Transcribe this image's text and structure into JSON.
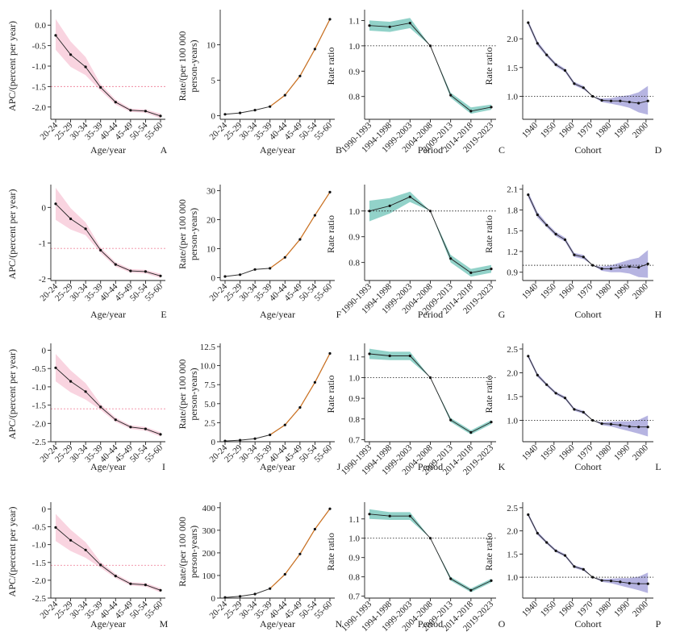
{
  "figure": {
    "panel_letters": [
      "A",
      "B",
      "C",
      "D",
      "E",
      "F",
      "G",
      "H",
      "I",
      "J",
      "K",
      "L",
      "M",
      "N",
      "O",
      "P"
    ]
  },
  "colors": {
    "apc_band": "#f7c6d6",
    "apc_ref": "#f08aa0",
    "rate_line": "#e07a1f",
    "period_band": "#7fcabf",
    "cohort_band": "#a9a7dc",
    "ref_dotted": "#333333"
  },
  "chart_data": [
    {
      "panel": "A",
      "kind": "apc",
      "type": "line",
      "xlabel": "Age/year",
      "ylabel": "APC/(percent per year)",
      "categories": [
        "20-24",
        "25-29",
        "30-34",
        "35-39",
        "40-44",
        "45-49",
        "50-54",
        "55-60"
      ],
      "values": [
        -0.25,
        -0.72,
        -1.02,
        -1.52,
        -1.88,
        -2.08,
        -2.1,
        -2.22
      ],
      "lower": [
        -0.6,
        -1.02,
        -1.22,
        -1.6,
        -1.94,
        -2.12,
        -2.14,
        -2.28
      ],
      "upper": [
        0.15,
        -0.4,
        -0.78,
        -1.44,
        -1.82,
        -2.04,
        -2.06,
        -2.16
      ],
      "reference": -1.5,
      "ylim": [
        -2.3,
        0.3
      ],
      "yticks": [
        0.0,
        -0.5,
        -1.0,
        -1.5,
        -2.0
      ],
      "ytick_labels": [
        "0.0",
        "-0.5",
        "-1.0",
        "-1.5",
        "-2.0"
      ]
    },
    {
      "panel": "B",
      "kind": "rate",
      "type": "line",
      "xlabel": "Age/year",
      "ylabel": [
        "Rate/(per 100 000",
        "person-years)"
      ],
      "categories": [
        "20-24",
        "25-29",
        "30-34",
        "35-39",
        "40-44",
        "45-49",
        "50-54",
        "55-60"
      ],
      "values": [
        0.2,
        0.4,
        0.8,
        1.3,
        2.9,
        5.6,
        9.4,
        13.6
      ],
      "ylim": [
        -0.5,
        14.5
      ],
      "yticks": [
        0,
        5,
        10
      ],
      "ytick_labels": [
        "0",
        "5",
        "10"
      ]
    },
    {
      "panel": "C",
      "kind": "period",
      "type": "line",
      "xlabel": "Period",
      "ylabel": "Rate ratio",
      "categories": [
        "1990-1993",
        "1994-1998",
        "1999-2003",
        "2004-2008",
        "2009-2013",
        "2014-2018",
        "2019-2023"
      ],
      "values": [
        1.08,
        1.075,
        1.09,
        1.0,
        0.805,
        0.742,
        0.758
      ],
      "lower": [
        1.06,
        1.055,
        1.07,
        1.0,
        0.795,
        0.732,
        0.748
      ],
      "upper": [
        1.1,
        1.095,
        1.11,
        1.0,
        0.815,
        0.757,
        0.768
      ],
      "reference": 1.0,
      "ylim": [
        0.71,
        1.13
      ],
      "yticks": [
        0.8,
        0.9,
        1.0,
        1.1
      ],
      "ytick_labels": [
        "0.8",
        "0.9",
        "1.0",
        "1.1"
      ]
    },
    {
      "panel": "D",
      "kind": "cohort",
      "type": "line",
      "xlabel": "Cohort",
      "ylabel": "Rate ratio",
      "x": [
        1936,
        1941,
        1946,
        1951,
        1956,
        1961,
        1966,
        1971,
        1976,
        1981,
        1986,
        1991,
        1996,
        2001
      ],
      "values": [
        2.28,
        1.92,
        1.72,
        1.55,
        1.45,
        1.22,
        1.15,
        1.0,
        0.93,
        0.92,
        0.92,
        0.9,
        0.88,
        0.92
      ],
      "lower": [
        2.24,
        1.88,
        1.69,
        1.52,
        1.42,
        1.19,
        1.12,
        1.0,
        0.9,
        0.87,
        0.84,
        0.8,
        0.72,
        0.68
      ],
      "upper": [
        2.32,
        1.96,
        1.75,
        1.58,
        1.48,
        1.25,
        1.18,
        1.0,
        0.96,
        0.97,
        1.0,
        1.02,
        1.07,
        1.18
      ],
      "reference": 1.0,
      "xlim": [
        1933,
        2004
      ],
      "ylim": [
        0.6,
        2.45
      ],
      "xticks": [
        1940,
        1950,
        1960,
        1970,
        1980,
        1990,
        2000
      ],
      "yticks": [
        1.0,
        1.5,
        2.0
      ],
      "ytick_labels": [
        "1.0",
        "1.5",
        "2.0"
      ]
    },
    {
      "panel": "E",
      "kind": "apc",
      "type": "line",
      "xlabel": "Age/year",
      "ylabel": "APC/(percent per year)",
      "categories": [
        "20-24",
        "25-29",
        "30-34",
        "35-39",
        "40-44",
        "45-49",
        "50-54",
        "55-60"
      ],
      "values": [
        0.1,
        -0.32,
        -0.6,
        -1.2,
        -1.6,
        -1.78,
        -1.8,
        -1.92
      ],
      "lower": [
        -0.35,
        -0.62,
        -0.78,
        -1.28,
        -1.66,
        -1.83,
        -1.85,
        -1.98
      ],
      "upper": [
        0.55,
        -0.02,
        -0.42,
        -1.12,
        -1.54,
        -1.73,
        -1.75,
        -1.86
      ],
      "reference": -1.15,
      "ylim": [
        -2.05,
        0.55
      ],
      "yticks": [
        0,
        -1,
        -2
      ],
      "ytick_labels": [
        "0",
        "-1",
        "-2"
      ]
    },
    {
      "panel": "F",
      "kind": "rate",
      "type": "line",
      "xlabel": "Age/year",
      "ylabel": [
        "Rate/(per 100 000",
        "person-years)"
      ],
      "categories": [
        "20-24",
        "25-29",
        "30-34",
        "35-39",
        "40-44",
        "45-49",
        "50-54",
        "55-60"
      ],
      "values": [
        0.4,
        1.0,
        2.8,
        3.2,
        7.0,
        13.2,
        21.5,
        29.5
      ],
      "ylim": [
        -1,
        31
      ],
      "yticks": [
        0,
        10,
        20,
        30
      ],
      "ytick_labels": [
        "0",
        "10",
        "20",
        "30"
      ]
    },
    {
      "panel": "G",
      "kind": "period",
      "type": "line",
      "xlabel": "Period",
      "ylabel": "Rate ratio",
      "categories": [
        "1990-1993",
        "1994-1998",
        "1999-2003",
        "2004-2008",
        "2009-2013",
        "2014-2018",
        "2019-2023"
      ],
      "values": [
        1.0,
        1.02,
        1.055,
        1.0,
        0.815,
        0.76,
        0.775
      ],
      "lower": [
        0.96,
        0.99,
        1.035,
        1.0,
        0.8,
        0.745,
        0.76
      ],
      "upper": [
        1.04,
        1.05,
        1.075,
        1.0,
        0.83,
        0.775,
        0.79
      ],
      "reference": 1.0,
      "ylim": [
        0.73,
        1.09
      ],
      "yticks": [
        0.8,
        0.9,
        1.0
      ],
      "ytick_labels": [
        "0.8",
        "0.9",
        "1.0"
      ]
    },
    {
      "panel": "H",
      "kind": "cohort",
      "type": "line",
      "xlabel": "Cohort",
      "ylabel": "Rate ratio",
      "x": [
        1936,
        1941,
        1946,
        1951,
        1956,
        1961,
        1966,
        1971,
        1976,
        1981,
        1986,
        1991,
        1996,
        2001
      ],
      "values": [
        2.02,
        1.73,
        1.58,
        1.45,
        1.37,
        1.15,
        1.12,
        1.0,
        0.95,
        0.95,
        0.97,
        0.98,
        0.97,
        1.02
      ],
      "lower": [
        1.98,
        1.69,
        1.55,
        1.42,
        1.34,
        1.12,
        1.09,
        1.0,
        0.92,
        0.9,
        0.9,
        0.88,
        0.83,
        0.82
      ],
      "upper": [
        2.06,
        1.77,
        1.61,
        1.48,
        1.4,
        1.18,
        1.15,
        1.0,
        0.98,
        1.0,
        1.04,
        1.08,
        1.11,
        1.22
      ],
      "reference": 1.0,
      "xlim": [
        1933,
        2004
      ],
      "ylim": [
        0.78,
        2.12
      ],
      "xticks": [
        1940,
        1950,
        1960,
        1970,
        1980,
        1990,
        2000
      ],
      "yticks": [
        0.9,
        1.2,
        1.5,
        1.8,
        2.1
      ],
      "ytick_labels": [
        "0.9",
        "1.2",
        "1.5",
        "1.8",
        "2.1"
      ]
    },
    {
      "panel": "I",
      "kind": "apc",
      "type": "line",
      "xlabel": "Age/year",
      "ylabel": "APC/(percent per year)",
      "categories": [
        "20-24",
        "25-29",
        "30-34",
        "35-39",
        "40-44",
        "45-49",
        "50-54",
        "55-60"
      ],
      "values": [
        -0.48,
        -0.85,
        -1.13,
        -1.55,
        -1.9,
        -2.1,
        -2.15,
        -2.3
      ],
      "lower": [
        -0.85,
        -1.15,
        -1.35,
        -1.63,
        -1.96,
        -2.15,
        -2.2,
        -2.36
      ],
      "upper": [
        -0.1,
        -0.55,
        -0.9,
        -1.47,
        -1.84,
        -2.05,
        -2.1,
        -2.24
      ],
      "reference": -1.6,
      "ylim": [
        -2.5,
        0.1
      ],
      "yticks": [
        0,
        -0.5,
        -1.0,
        -1.5,
        -2.0,
        -2.5
      ],
      "ytick_labels": [
        "0",
        "-0.5",
        "-1.0",
        "-1.5",
        "-2.0",
        "-2.5"
      ]
    },
    {
      "panel": "J",
      "kind": "rate",
      "type": "line",
      "xlabel": "Age/year",
      "ylabel": [
        "Rate/(per 100 000",
        "person-years)"
      ],
      "categories": [
        "20-24",
        "25-29",
        "30-34",
        "35-39",
        "40-44",
        "45-49",
        "50-54",
        "55-60"
      ],
      "values": [
        0.1,
        0.2,
        0.4,
        0.9,
        2.2,
        4.5,
        7.8,
        11.6
      ],
      "ylim": [
        0,
        12.5
      ],
      "yticks": [
        0,
        2.5,
        5.0,
        7.5,
        10.0,
        12.5
      ],
      "ytick_labels": [
        "0",
        "2.5",
        "5.0",
        "7.5",
        "10.0",
        "12.5"
      ]
    },
    {
      "panel": "K",
      "kind": "period",
      "type": "line",
      "xlabel": "Period",
      "ylabel": "Rate ratio",
      "categories": [
        "1990-1993",
        "1994-1998",
        "1999-2003",
        "2004-2008",
        "2009-2013",
        "2014-2018",
        "2019-2023"
      ],
      "values": [
        1.115,
        1.105,
        1.105,
        1.0,
        0.795,
        0.735,
        0.785
      ],
      "lower": [
        1.09,
        1.085,
        1.085,
        1.0,
        0.785,
        0.725,
        0.775
      ],
      "upper": [
        1.14,
        1.125,
        1.125,
        1.0,
        0.805,
        0.745,
        0.795
      ],
      "reference": 1.0,
      "ylim": [
        0.69,
        1.15
      ],
      "yticks": [
        0.7,
        0.8,
        0.9,
        1.0,
        1.1
      ],
      "ytick_labels": [
        "0.7",
        "0.8",
        "0.9",
        "1.0",
        "1.1"
      ]
    },
    {
      "panel": "L",
      "kind": "cohort",
      "type": "line",
      "xlabel": "Cohort",
      "ylabel": "Rate ratio",
      "x": [
        1936,
        1941,
        1946,
        1951,
        1956,
        1961,
        1966,
        1971,
        1976,
        1981,
        1986,
        1991,
        1996,
        2001
      ],
      "values": [
        2.35,
        1.95,
        1.75,
        1.57,
        1.47,
        1.23,
        1.17,
        1.0,
        0.93,
        0.92,
        0.9,
        0.87,
        0.86,
        0.86
      ],
      "lower": [
        2.31,
        1.91,
        1.72,
        1.54,
        1.44,
        1.2,
        1.14,
        1.0,
        0.9,
        0.87,
        0.82,
        0.77,
        0.72,
        0.66
      ],
      "upper": [
        2.39,
        1.99,
        1.78,
        1.6,
        1.5,
        1.26,
        1.2,
        1.0,
        0.96,
        0.97,
        0.98,
        0.98,
        1.01,
        1.1
      ],
      "reference": 1.0,
      "xlim": [
        1933,
        2004
      ],
      "ylim": [
        0.55,
        2.55
      ],
      "xticks": [
        1940,
        1950,
        1960,
        1970,
        1980,
        1990,
        2000
      ],
      "yticks": [
        1.0,
        1.5,
        2.0,
        2.5
      ],
      "ytick_labels": [
        "1.0",
        "1.5",
        "2.0",
        "2.5"
      ]
    },
    {
      "panel": "M",
      "kind": "apc",
      "type": "line",
      "xlabel": "Age/year",
      "ylabel": "APC/(percent per year)",
      "categories": [
        "20-24",
        "25-29",
        "30-34",
        "35-39",
        "40-44",
        "45-49",
        "50-54",
        "55-60"
      ],
      "values": [
        -0.52,
        -0.88,
        -1.15,
        -1.57,
        -1.88,
        -2.1,
        -2.13,
        -2.28
      ],
      "lower": [
        -0.9,
        -1.18,
        -1.37,
        -1.65,
        -1.94,
        -2.15,
        -2.18,
        -2.34
      ],
      "upper": [
        -0.14,
        -0.58,
        -0.93,
        -1.49,
        -1.82,
        -2.05,
        -2.08,
        -2.22
      ],
      "reference": -1.58,
      "ylim": [
        -2.5,
        0.1
      ],
      "yticks": [
        0,
        -0.5,
        -1.0,
        -1.5,
        -2.0,
        -2.5
      ],
      "ytick_labels": [
        "0",
        "-0.5",
        "-1.0",
        "-1.5",
        "-2.0",
        "-2.5"
      ]
    },
    {
      "panel": "N",
      "kind": "rate",
      "type": "line",
      "xlabel": "Age/year",
      "ylabel": [
        "Rate/(per 100 000",
        "person-years)"
      ],
      "categories": [
        "20-24",
        "25-29",
        "30-34",
        "35-39",
        "40-44",
        "45-49",
        "50-54",
        "55-60"
      ],
      "values": [
        3,
        8,
        18,
        42,
        105,
        195,
        305,
        395
      ],
      "ylim": [
        0,
        410
      ],
      "yticks": [
        0,
        100,
        200,
        300,
        400
      ],
      "ytick_labels": [
        "0",
        "100",
        "200",
        "300",
        "400"
      ]
    },
    {
      "panel": "O",
      "kind": "period",
      "type": "line",
      "xlabel": "Period",
      "ylabel": "Rate ratio",
      "categories": [
        "1990-1993",
        "1994-1998",
        "1999-2003",
        "2004-2008",
        "2009-2013",
        "2014-2018",
        "2019-2023"
      ],
      "values": [
        1.125,
        1.115,
        1.115,
        1.0,
        0.79,
        0.73,
        0.78
      ],
      "lower": [
        1.1,
        1.095,
        1.095,
        1.0,
        0.78,
        0.72,
        0.77
      ],
      "upper": [
        1.15,
        1.135,
        1.135,
        1.0,
        0.8,
        0.74,
        0.79
      ],
      "reference": 1.0,
      "ylim": [
        0.69,
        1.17
      ],
      "yticks": [
        0.7,
        0.8,
        0.9,
        1.0,
        1.1
      ],
      "ytick_labels": [
        "0.7",
        "0.8",
        "0.9",
        "1.0",
        "1.1"
      ]
    },
    {
      "panel": "P",
      "kind": "cohort",
      "type": "line",
      "xlabel": "Cohort",
      "ylabel": "Rate ratio",
      "x": [
        1936,
        1941,
        1946,
        1951,
        1956,
        1961,
        1966,
        1971,
        1976,
        1981,
        1986,
        1991,
        1996,
        2001
      ],
      "values": [
        2.35,
        1.95,
        1.75,
        1.57,
        1.47,
        1.23,
        1.17,
        1.0,
        0.93,
        0.92,
        0.9,
        0.87,
        0.86,
        0.86
      ],
      "lower": [
        2.31,
        1.91,
        1.72,
        1.54,
        1.44,
        1.2,
        1.14,
        1.0,
        0.9,
        0.87,
        0.82,
        0.77,
        0.72,
        0.66
      ],
      "upper": [
        2.39,
        1.99,
        1.78,
        1.6,
        1.5,
        1.26,
        1.2,
        1.0,
        0.96,
        0.97,
        0.98,
        0.98,
        1.01,
        1.1
      ],
      "reference": 1.0,
      "xlim": [
        1933,
        2004
      ],
      "ylim": [
        0.55,
        2.55
      ],
      "xticks": [
        1940,
        1950,
        1960,
        1970,
        1980,
        1990,
        2000
      ],
      "yticks": [
        1.0,
        1.5,
        2.0,
        2.5
      ],
      "ytick_labels": [
        "1.0",
        "1.5",
        "2.0",
        "2.5"
      ]
    }
  ]
}
